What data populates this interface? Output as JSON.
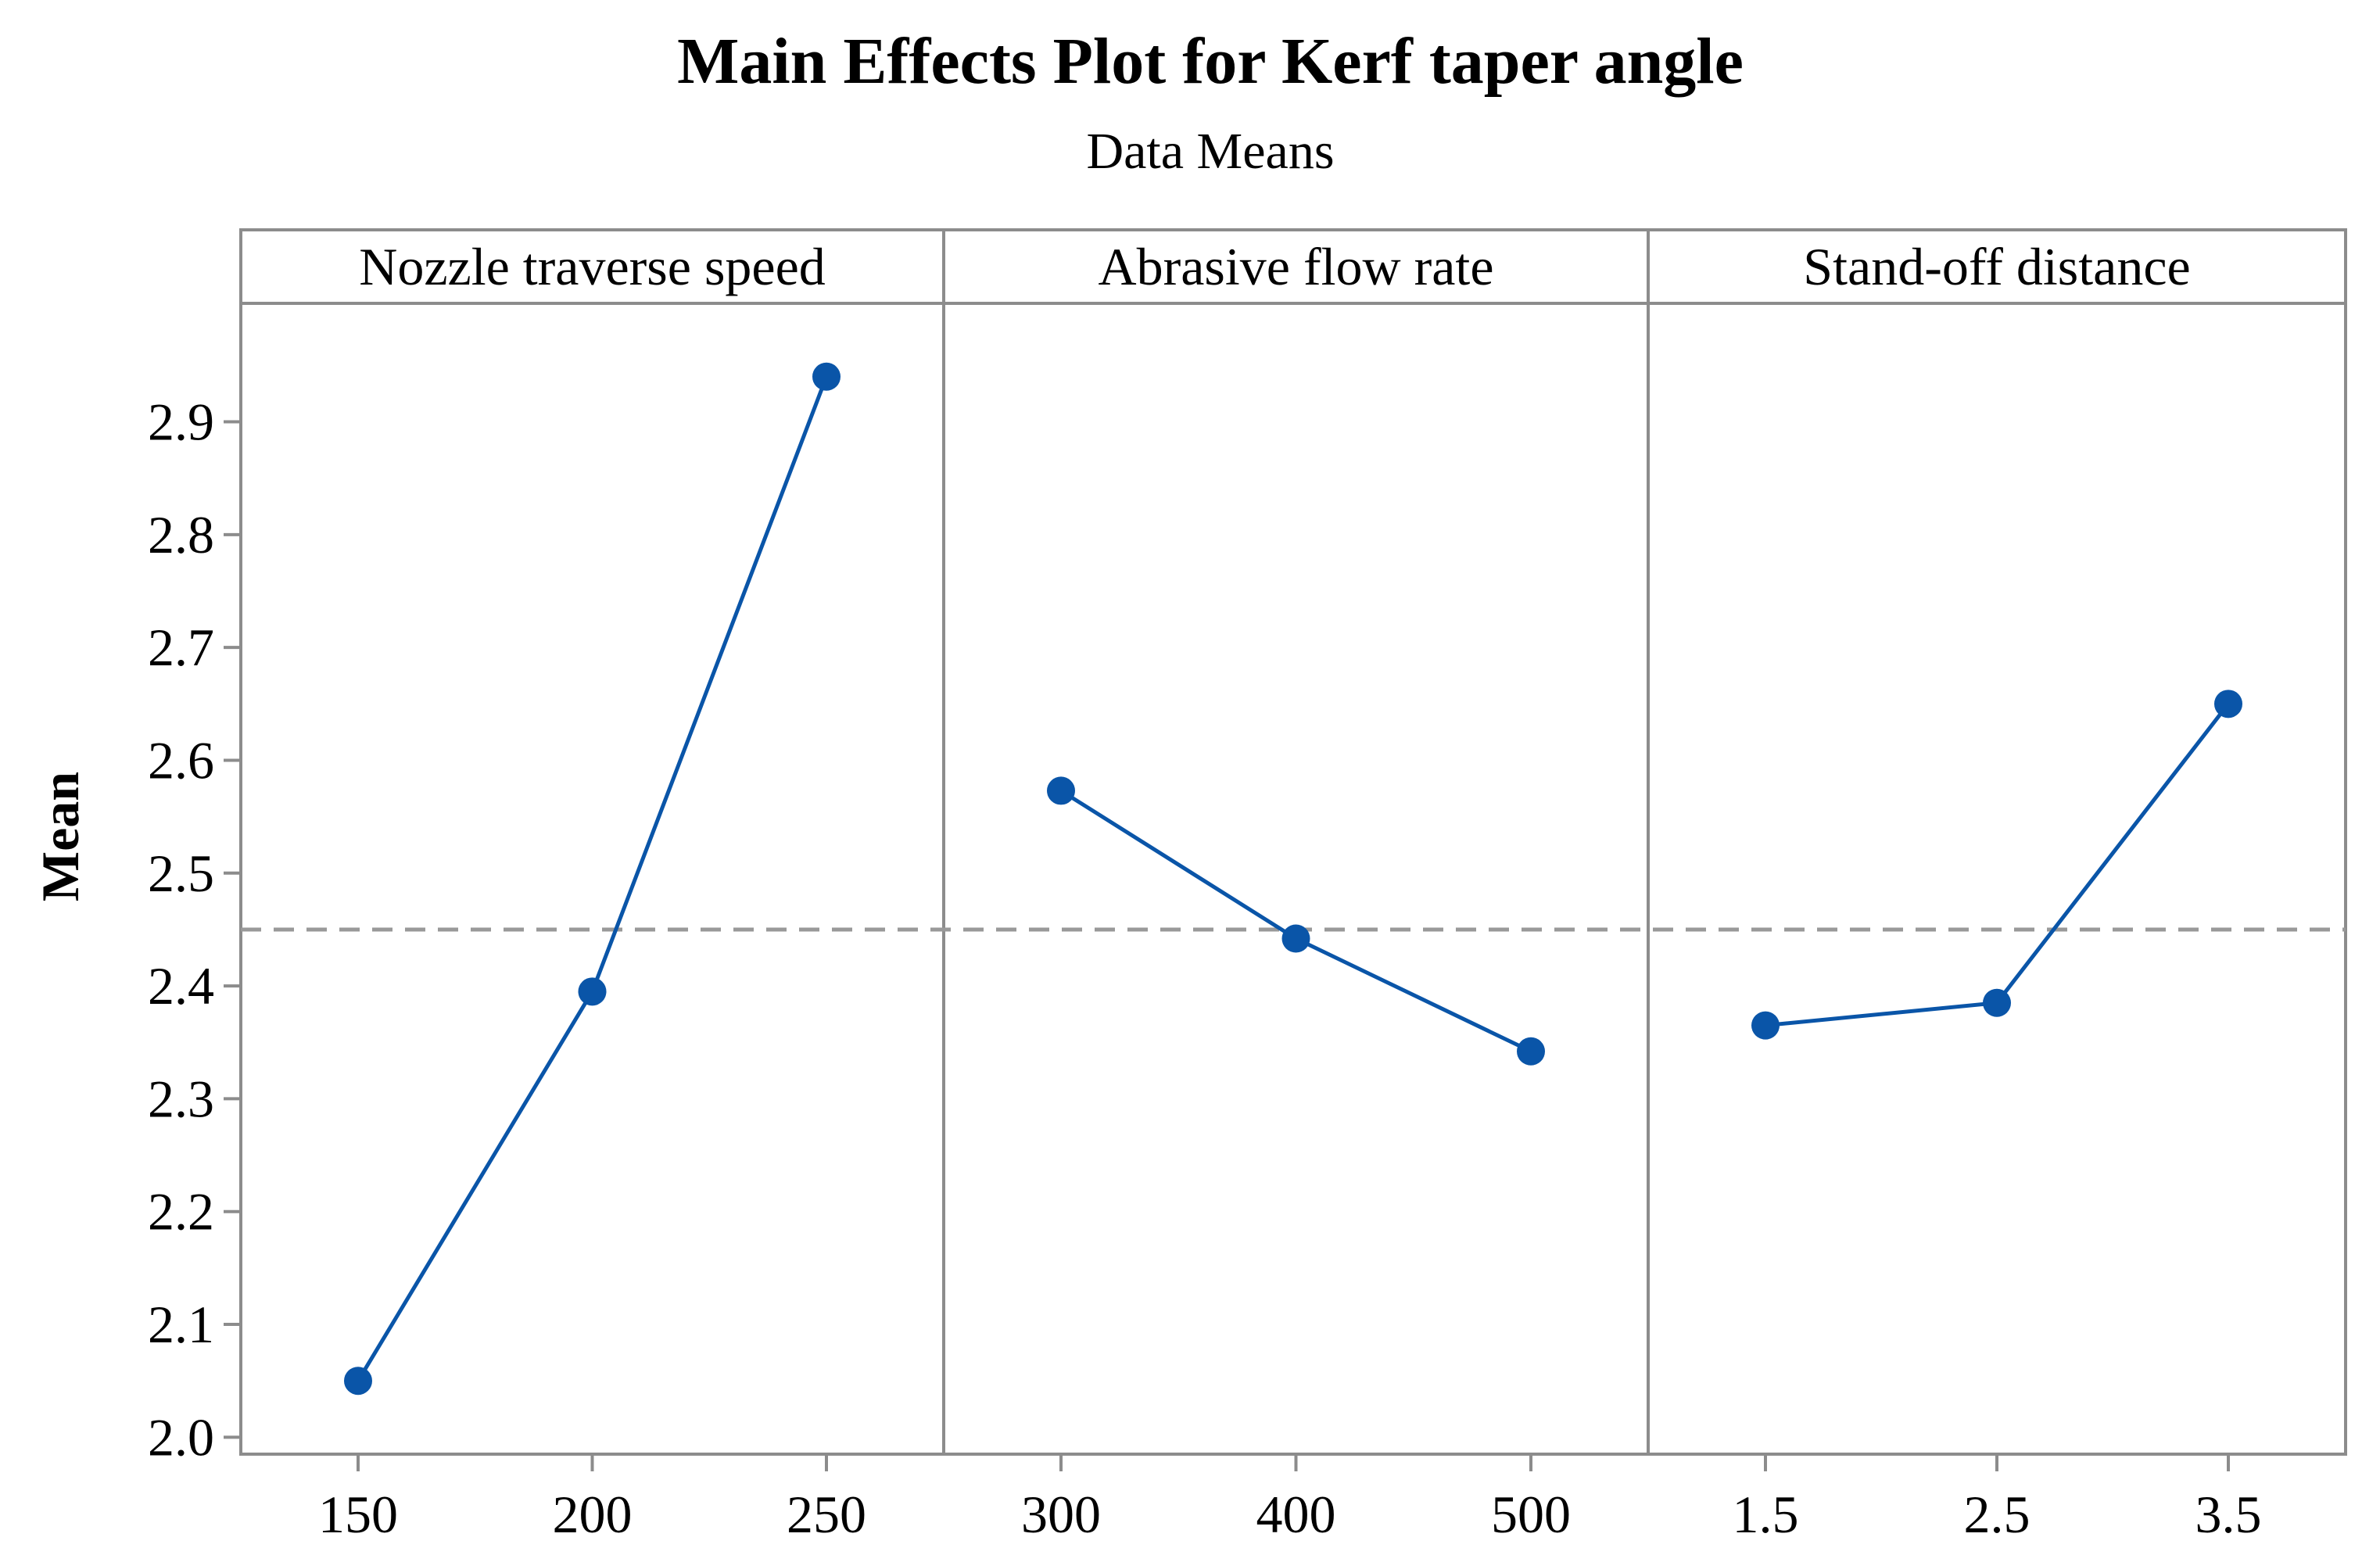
{
  "chart_data": {
    "type": "line",
    "title": "Main Effects Plot for Kerf taper angle",
    "subtitle": "Data Means",
    "ylabel": "Mean",
    "ylim": [
      1.985,
      3.005
    ],
    "yticks": [
      2.0,
      2.1,
      2.2,
      2.3,
      2.4,
      2.5,
      2.6,
      2.7,
      2.8,
      2.9
    ],
    "ytick_labels": [
      "2.0",
      "2.1",
      "2.2",
      "2.3",
      "2.4",
      "2.5",
      "2.6",
      "2.7",
      "2.8",
      "2.9"
    ],
    "reference_mean": 2.45,
    "grid": false,
    "colors": {
      "series": "#0a55a8",
      "frame": "#8c8c8c",
      "reference": "#999999"
    },
    "panels": [
      {
        "name": "Nozzle traverse speed",
        "categories": [
          "150",
          "200",
          "250"
        ],
        "values": [
          2.05,
          2.395,
          2.94
        ]
      },
      {
        "name": "Abrasive flow rate",
        "categories": [
          "300",
          "400",
          "500"
        ],
        "values": [
          2.573,
          2.442,
          2.342
        ]
      },
      {
        "name": "Stand-off distance",
        "categories": [
          "1.5",
          "2.5",
          "3.5"
        ],
        "values": [
          2.365,
          2.385,
          2.65
        ]
      }
    ]
  }
}
